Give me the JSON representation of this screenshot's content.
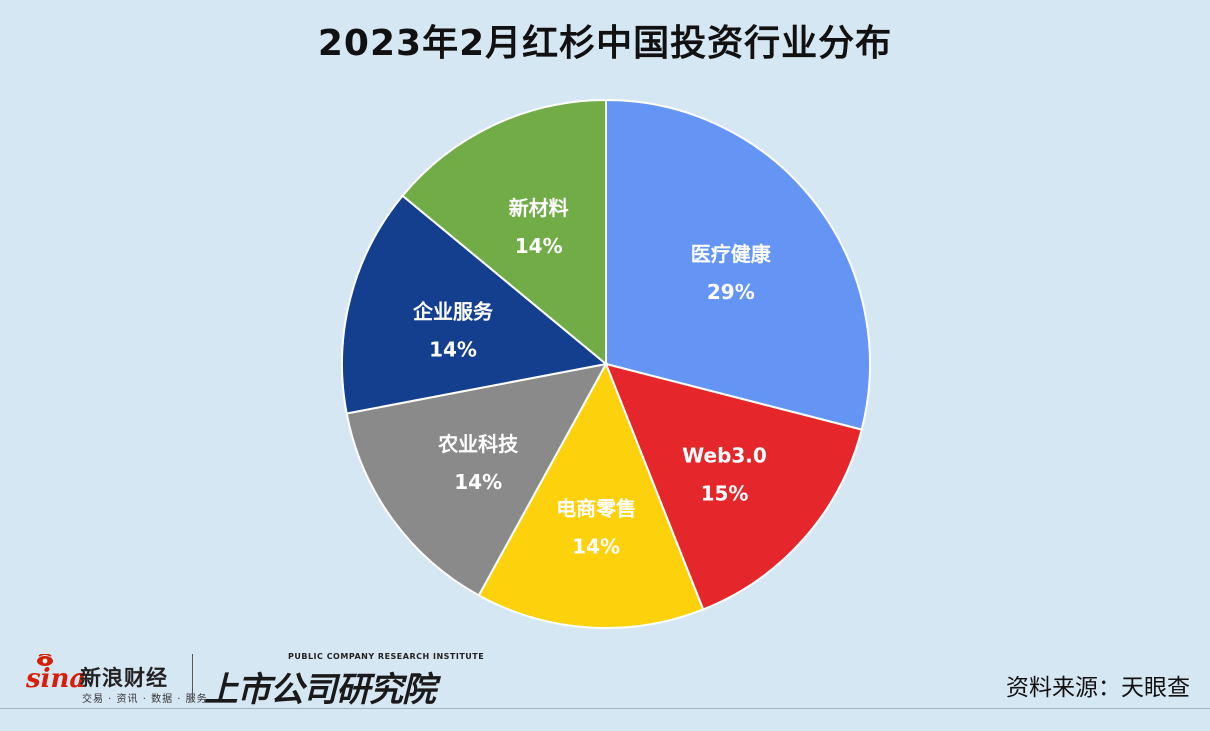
{
  "title": "2023年2月红杉中国投资行业分布",
  "source": "资料来源：天眼查",
  "brand": {
    "sina_logo_text": "sina",
    "sina_name": "新浪财经",
    "sina_tagline": "交易 · 资讯 · 数据 · 服务",
    "institute_en": "PUBLIC COMPANY RESEARCH INSTITUTE",
    "institute_cn": "上市公司研究院"
  },
  "chart_data": {
    "type": "pie",
    "title": "2023年2月红杉中国投资行业分布",
    "start_angle_deg": 0,
    "direction": "clockwise",
    "slices": [
      {
        "label": "医疗健康",
        "value": 29,
        "display": "29%",
        "color": "#6495f5",
        "label_color": "#ffffff"
      },
      {
        "label": "Web3.0",
        "value": 15,
        "display": "15%",
        "color": "#e5262a",
        "label_color": "#ffffff"
      },
      {
        "label": "电商零售",
        "value": 14,
        "display": "14%",
        "color": "#fdd10c",
        "label_color": "#ffffff"
      },
      {
        "label": "农业科技",
        "value": 14,
        "display": "14%",
        "color": "#8a8a8a",
        "label_color": "#ffffff"
      },
      {
        "label": "企业服务",
        "value": 14,
        "display": "14%",
        "color": "#143f8f",
        "label_color": "#ffffff"
      },
      {
        "label": "新材料",
        "value": 14,
        "display": "14%",
        "color": "#72ac47",
        "label_color": "#ffffff"
      }
    ]
  }
}
